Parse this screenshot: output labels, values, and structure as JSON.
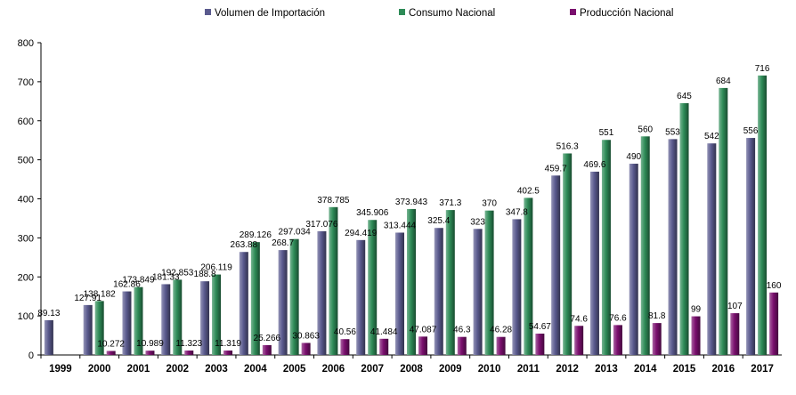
{
  "chart_data": {
    "type": "bar",
    "title": "",
    "xlabel": "",
    "ylabel": "",
    "ylim": [
      0,
      800
    ],
    "yticks": [
      "0",
      "100",
      "200",
      "300",
      "400",
      "500",
      "600",
      "700",
      "800"
    ],
    "grid": false,
    "legend_position": "top",
    "categories": [
      "1999",
      "2000",
      "2001",
      "2002",
      "2003",
      "2004",
      "2005",
      "2006",
      "2007",
      "2008",
      "2009",
      "2010",
      "2011",
      "2012",
      "2013",
      "2014",
      "2015",
      "2016",
      "2017"
    ],
    "series": [
      {
        "name": "Volumen de Importación",
        "color": "#5a5a8e",
        "values": [
          89.13,
          127.91,
          162.86,
          181.33,
          188.8,
          263.88,
          268.7,
          317.076,
          294.419,
          313.444,
          325.4,
          323,
          347.8,
          459.7,
          469.6,
          490,
          553,
          542,
          556
        ],
        "labels": [
          "89.13",
          "127.91",
          "162.86",
          "181.33",
          "188.8",
          "263.88",
          "268.7",
          "317.076",
          "294.419",
          "313.444",
          "325.4",
          "323",
          "347.8",
          "459.7",
          "469.6",
          "490",
          "553",
          "542",
          "556"
        ]
      },
      {
        "name": "Consumo Nacional",
        "color": "#2e8b57",
        "values": [
          null,
          138.182,
          173.849,
          192.853,
          206.119,
          289.126,
          297.034,
          378.785,
          345.906,
          373.943,
          371.3,
          370,
          402.5,
          516.3,
          551,
          560,
          645,
          684,
          716
        ],
        "labels": [
          "",
          "138.182",
          "173.849",
          "192.853",
          "206.119",
          "289.126",
          "297.034",
          "378.785",
          "345.906",
          "373.943",
          "371.3",
          "370",
          "402.5",
          "516.3",
          "551",
          "560",
          "645",
          "684",
          "716"
        ]
      },
      {
        "name": "Producción Nacional",
        "color": "#7a0f6e",
        "values": [
          null,
          10.272,
          10.989,
          11.323,
          11.319,
          25.266,
          30.863,
          40.56,
          41.484,
          47.087,
          46.3,
          46.28,
          54.67,
          74.6,
          76.6,
          81.8,
          99,
          107,
          160
        ],
        "labels": [
          "",
          "10.272",
          "10.989",
          "11.323",
          "11.319",
          "25.266",
          "30.863",
          "40.56",
          "41.484",
          "47.087",
          "46.3",
          "46.28",
          "54.67",
          "74.6",
          "76.6",
          "81.8",
          "99",
          "107",
          "160"
        ]
      }
    ]
  }
}
